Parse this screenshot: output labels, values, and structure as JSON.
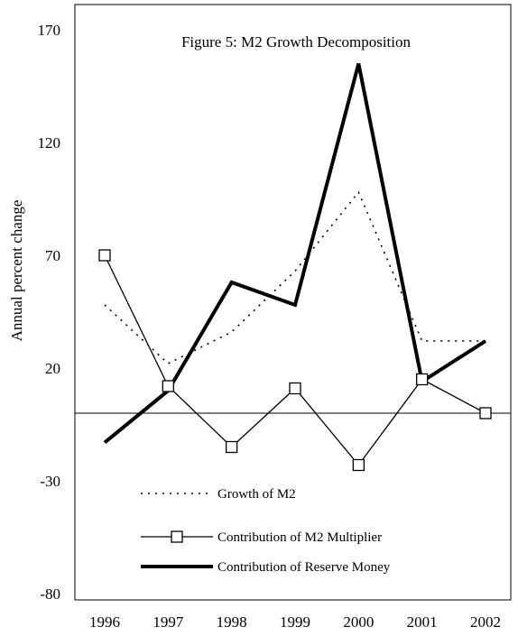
{
  "chart_data": {
    "type": "line",
    "title": "Figure 5: M2 Growth Decomposition",
    "xlabel": "",
    "ylabel": "Annual percent change",
    "categories": [
      "1996",
      "1997",
      "1998",
      "1999",
      "2000",
      "2001",
      "2002"
    ],
    "yticks": [
      "170",
      "120",
      "70",
      "20",
      "-30",
      "-80"
    ],
    "ylim": [
      -80,
      170
    ],
    "baseline": 0,
    "grid": false,
    "legend_position": "bottom-left",
    "series": [
      {
        "name": "Growth of M2",
        "style": "dotted",
        "color": "#000000",
        "values": [
          48,
          22,
          36,
          63,
          98,
          32,
          32
        ]
      },
      {
        "name": "Contribution of M2 Multiplier",
        "style": "solid-square-markers",
        "color": "#000000",
        "values": [
          70,
          12,
          -15,
          11,
          -23,
          15,
          0
        ]
      },
      {
        "name": "Contribution of Reserve Money",
        "style": "thick",
        "color": "#000000",
        "values": [
          -13,
          10,
          58,
          48,
          155,
          14,
          32
        ]
      }
    ]
  }
}
